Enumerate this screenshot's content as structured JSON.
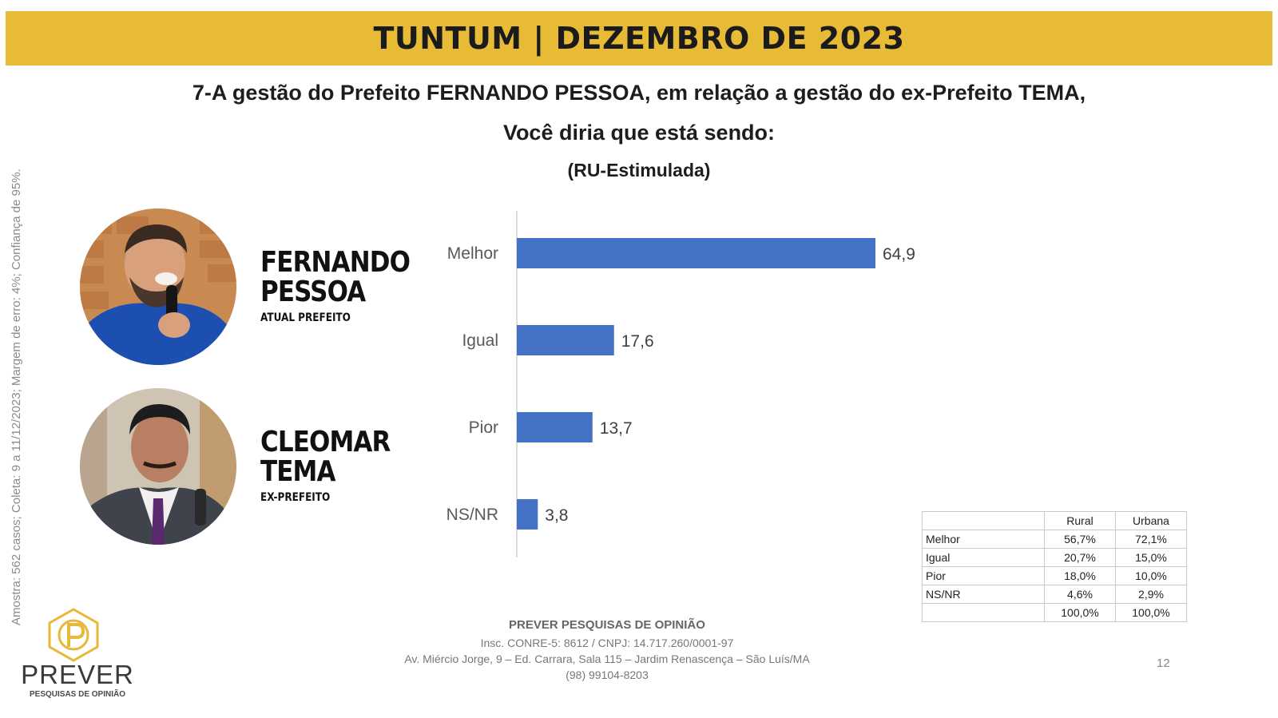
{
  "header": {
    "title": "TUNTUM | DEZEMBRO DE 2023"
  },
  "question": {
    "line1": "7-A gestão do Prefeito FERNANDO PESSOA, em relação a gestão do ex-Prefeito TEMA,",
    "line2": "Você diria que está sendo:",
    "line3": "(RU-Estimulada)"
  },
  "methodology_note": "Amostra: 562 casos; Coleta: 9 a 11/12/2023; Margem de erro: 4%; Confiança de 95%.",
  "candidates": [
    {
      "first": "FERNANDO",
      "last": "PESSOA",
      "role": "ATUAL PREFEITO"
    },
    {
      "first": "CLEOMAR",
      "last": "TEMA",
      "role": "EX-PREFEITO"
    }
  ],
  "chart_data": {
    "type": "bar",
    "orientation": "horizontal",
    "categories": [
      "Melhor",
      "Igual",
      "Pior",
      "NS/NR"
    ],
    "values": [
      64.9,
      17.6,
      13.7,
      3.8
    ],
    "value_labels": [
      "64,9",
      "17,6",
      "13,7",
      "3,8"
    ],
    "bar_color": "#4472c4",
    "grid": false,
    "title": "",
    "xlabel": "",
    "ylabel": ""
  },
  "breakdown_table": {
    "headers": [
      "",
      "Rural",
      "Urbana"
    ],
    "rows": [
      [
        "Melhor",
        "56,7%",
        "72,1%"
      ],
      [
        "Igual",
        "20,7%",
        "15,0%"
      ],
      [
        "Pior",
        "18,0%",
        "10,0%"
      ],
      [
        "NS/NR",
        "4,6%",
        "2,9%"
      ],
      [
        "",
        "100,0%",
        "100,0%"
      ]
    ]
  },
  "logo": {
    "name": "PREVER",
    "subtitle": "PESQUISAS DE OPINIÃO"
  },
  "footer": {
    "company": "PREVER PESQUISAS DE OPINIÃO",
    "registration": "Insc. CONRE-5: 8612 / CNPJ: 14.717.260/0001-97",
    "address": "Av. Miércio Jorge, 9 – Ed. Carrara, Sala 115 – Jardim Renascença – São Luís/MA",
    "phone": "(98) 99104-8203"
  },
  "page_number": "12",
  "colors": {
    "banner": "#e8bb36",
    "bar": "#4472c4",
    "logo_accent": "#e6b93a"
  }
}
